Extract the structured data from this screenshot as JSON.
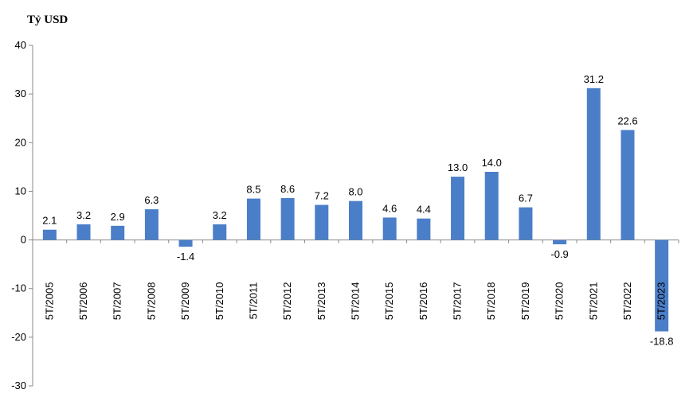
{
  "chart_data": {
    "type": "bar",
    "title": "",
    "unit_label": "Tỷ USD",
    "xlabel": "",
    "ylabel": "",
    "ylim": [
      -30,
      40
    ],
    "yticks": [
      40,
      30,
      20,
      10,
      0,
      -10,
      -20,
      -30
    ],
    "grid": false,
    "legend": "none",
    "bar_color": "#4a7ec8",
    "categories": [
      "5T/2005",
      "5T/2006",
      "5T/2007",
      "5T/2008",
      "5T/2009",
      "5T/2010",
      "5T/2011",
      "5T/2012",
      "5T/2013",
      "5T/2014",
      "5T/2015",
      "5T/2016",
      "5T/2017",
      "5T/2018",
      "5T/2019",
      "5T/2020",
      "5T/2021",
      "5T/2022",
      "5T/2023"
    ],
    "values": [
      2.1,
      3.2,
      2.9,
      6.3,
      -1.4,
      3.2,
      8.5,
      8.6,
      7.2,
      8.0,
      4.6,
      4.4,
      13.0,
      14.0,
      6.7,
      -0.9,
      31.2,
      22.6,
      -18.8
    ],
    "value_labels": [
      "2.1",
      "3.2",
      "2.9",
      "6.3",
      "-1.4",
      "3.2",
      "8.5",
      "8.6",
      "7.2",
      "8.0",
      "4.6",
      "4.4",
      "13.0",
      "14.0",
      "6.7",
      "-0.9",
      "31.2",
      "22.6",
      "-18.8"
    ]
  }
}
